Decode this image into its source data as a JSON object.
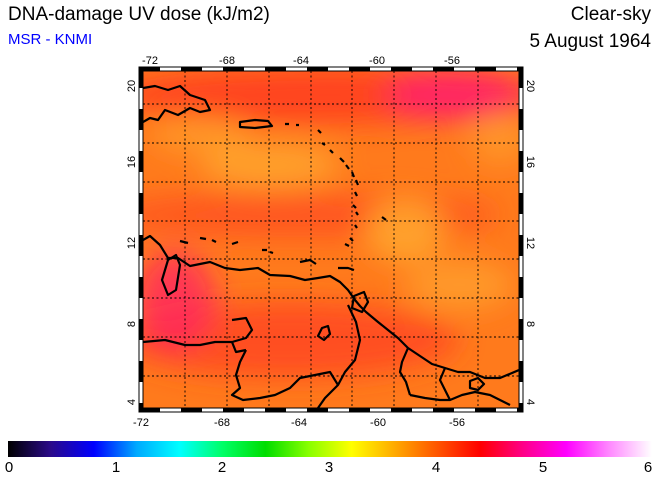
{
  "header": {
    "title": "DNA-damage UV dose (kJ/m2)",
    "source": "MSR - KNMI",
    "condition": "Clear-sky",
    "date": "5 August 1964"
  },
  "map": {
    "lon_range": [
      -72,
      -53
    ],
    "lat_range": [
      3.5,
      20.5
    ],
    "lon_ticks": [
      "-72",
      "-68",
      "-64",
      "-60",
      "-56"
    ],
    "lat_ticks": [
      "4",
      "8",
      "12",
      "16",
      "20"
    ],
    "grid": true
  },
  "colorbar": {
    "min": 0,
    "max": 6,
    "labels": [
      "0",
      "1",
      "2",
      "3",
      "4",
      "5",
      "6"
    ],
    "colors": [
      "#000000",
      "#2a0a8a",
      "#0000ff",
      "#00aaff",
      "#00ffff",
      "#00ff66",
      "#00dd00",
      "#88ff00",
      "#ffff00",
      "#ffaa00",
      "#ff5500",
      "#ff0000",
      "#ff0088",
      "#ff00ff",
      "#ff88ff",
      "#ffffff"
    ]
  },
  "colors": {
    "background_orange": "#ff7a1c",
    "band_red": "#ff3a22",
    "spot_yellow": "#ffae30",
    "spot_magenta": "#ff1f6a",
    "source_blue": "#0000ff"
  }
}
